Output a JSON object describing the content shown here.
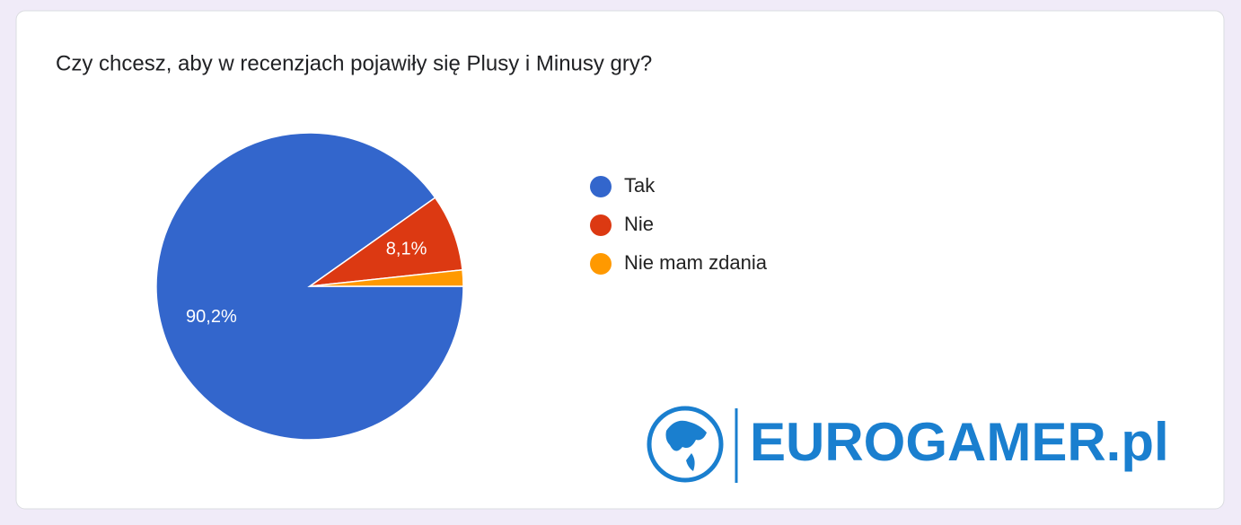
{
  "chart_data": {
    "type": "pie",
    "title": "Czy chcesz, aby w recenzjach pojawiły się Plusy i Minusy gry?",
    "categories": [
      "Tak",
      "Nie",
      "Nie mam zdania"
    ],
    "values": [
      90.2,
      8.1,
      1.7
    ],
    "value_labels": [
      "90,2%",
      "8,1%",
      null
    ],
    "colors": [
      "#3366cc",
      "#dc3912",
      "#ff9900"
    ],
    "legend": "right"
  },
  "logo": {
    "text": "EUROGAMER.pl"
  }
}
